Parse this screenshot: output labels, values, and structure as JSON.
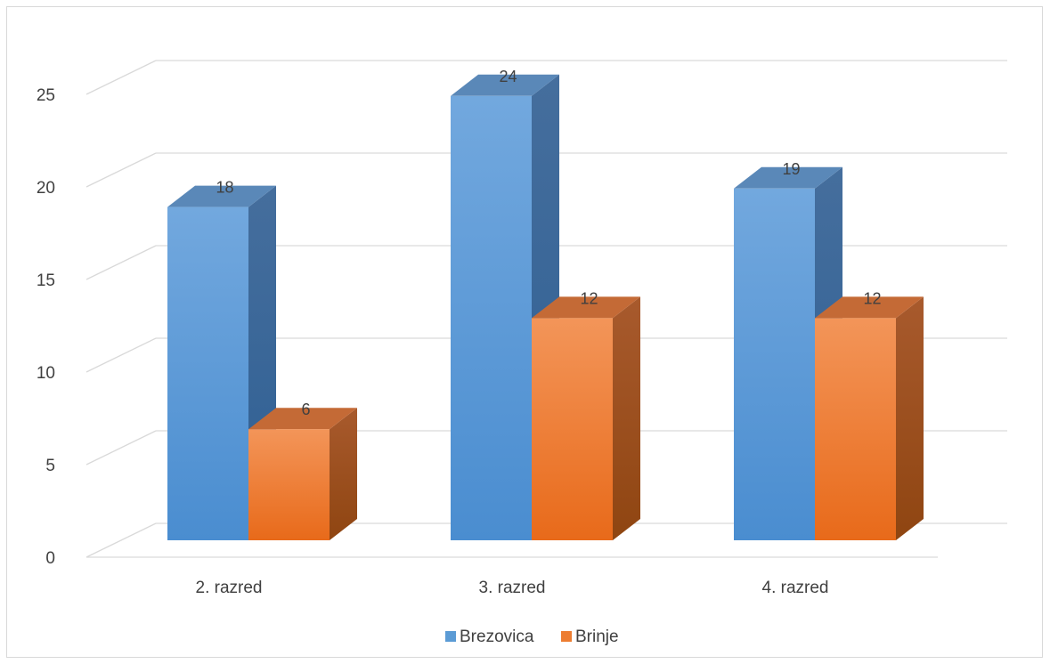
{
  "chart_data": {
    "type": "bar",
    "subtype": "3d-clustered-column",
    "title": "",
    "xlabel": "",
    "ylabel": "",
    "categories": [
      "2. razred",
      "3. razred",
      "4. razred"
    ],
    "series": [
      {
        "name": "Brezovica",
        "values": [
          18,
          24,
          19
        ],
        "color": "#5b9bd5"
      },
      {
        "name": "Brinje",
        "values": [
          6,
          12,
          12
        ],
        "color": "#ed7d31"
      }
    ],
    "ylim": [
      0,
      25
    ],
    "yticks": [
      "0",
      "5",
      "10",
      "15",
      "20",
      "25"
    ],
    "grid": true,
    "legend_position": "bottom",
    "data_labels": true
  }
}
